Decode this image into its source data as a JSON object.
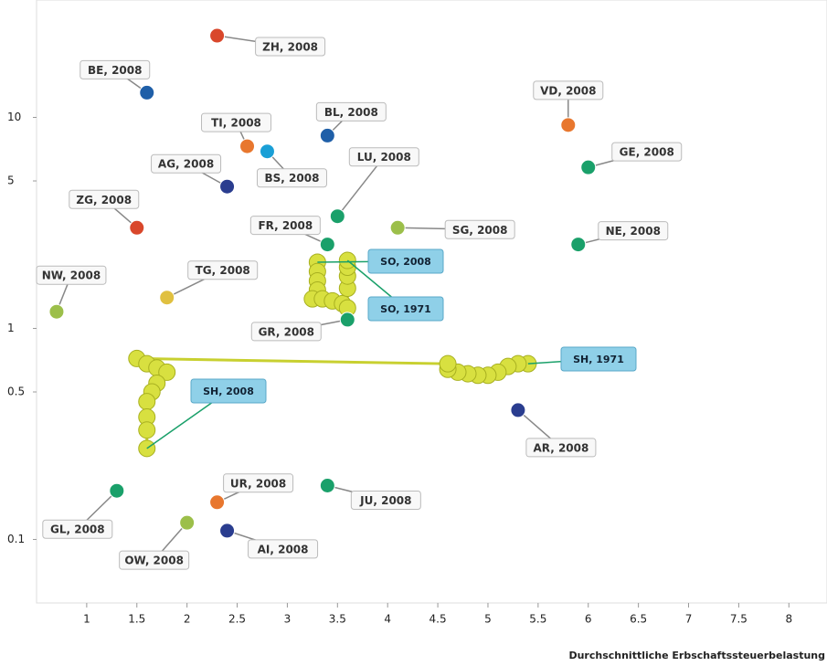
{
  "chart_data": {
    "type": "scatter",
    "log_y": true,
    "xlabel": "Durchschnittliche Erbschaftssteuerbelastung",
    "xlim": [
      0.5,
      8.38
    ],
    "ylim": [
      0.05,
      36
    ],
    "xticks": [
      1,
      1.5,
      2,
      2.5,
      3,
      3.5,
      4,
      4.5,
      5,
      5.5,
      6,
      6.5,
      7,
      7.5,
      8
    ],
    "yticks": [
      0.1,
      0.5,
      1,
      5,
      10
    ],
    "points": {
      "labels": [
        "ZH, 2008",
        "BE, 2008",
        "VD, 2008",
        "BL, 2008",
        "TI, 2008",
        "BS, 2008",
        "GE, 2008",
        "AG, 2008",
        "LU, 2008",
        "ZG, 2008",
        "SG, 2008",
        "FR, 2008",
        "NE, 2008",
        "TG, 2008",
        "NW, 2008",
        "GR, 2008",
        "AR, 2008",
        "GL, 2008",
        "JU, 2008",
        "UR, 2008",
        "OW, 2008",
        "AI, 2008"
      ],
      "x": [
        2.3,
        1.6,
        5.8,
        3.4,
        2.6,
        2.8,
        6.0,
        2.4,
        3.5,
        1.5,
        4.1,
        3.4,
        5.9,
        1.8,
        0.7,
        3.6,
        5.3,
        1.3,
        3.4,
        2.3,
        2.0,
        2.4
      ],
      "values": [
        24.4,
        13.1,
        9.2,
        8.2,
        7.3,
        6.9,
        5.8,
        4.7,
        3.4,
        3.0,
        3.0,
        2.5,
        2.5,
        1.4,
        1.2,
        1.1,
        0.41,
        0.17,
        0.18,
        0.15,
        0.12,
        0.11
      ],
      "colors": [
        "#d9472b",
        "#1f5fa8",
        "#e8772e",
        "#1f5fa8",
        "#e8772e",
        "#1a9fd6",
        "#1aa06a",
        "#2a3d8f",
        "#1aa06a",
        "#d9472b",
        "#9cbf4a",
        "#1aa06a",
        "#1aa06a",
        "#e0c040",
        "#9cbf4a",
        "#1aa06a",
        "#2a3d8f",
        "#1aa06a",
        "#1aa06a",
        "#e8772e",
        "#9cbf4a",
        "#2a3d8f"
      ]
    },
    "trails": [
      {
        "labels": [
          "SO, 2008",
          "SO, 1971"
        ],
        "color": "#d8e040",
        "x": [
          3.3,
          3.3,
          3.3,
          3.3,
          3.25,
          3.35,
          3.45,
          3.55,
          3.6,
          3.6,
          3.6,
          3.6,
          3.6
        ],
        "values": [
          2.06,
          1.86,
          1.68,
          1.52,
          1.38,
          1.38,
          1.35,
          1.31,
          1.25,
          1.55,
          1.77,
          1.95,
          2.1
        ]
      },
      {
        "labels": [
          "SH, 1971",
          "SH, 2008"
        ],
        "color": "#d8e040",
        "x": [
          5.4,
          5.3,
          5.2,
          5.1,
          5.0,
          4.9,
          4.8,
          4.7,
          4.6,
          4.6,
          1.5,
          1.6,
          1.7,
          1.8,
          1.7,
          1.65,
          1.6,
          1.6,
          1.6,
          1.6
        ],
        "values": [
          0.68,
          0.68,
          0.66,
          0.62,
          0.6,
          0.6,
          0.61,
          0.62,
          0.64,
          0.68,
          0.72,
          0.68,
          0.65,
          0.62,
          0.55,
          0.5,
          0.45,
          0.38,
          0.33,
          0.27
        ]
      }
    ]
  }
}
